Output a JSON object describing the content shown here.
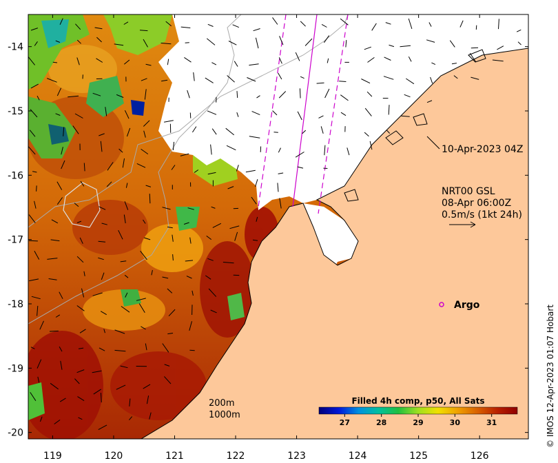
{
  "map": {
    "x_ticks": [
      "119",
      "120",
      "121",
      "122",
      "123",
      "124",
      "125",
      "126"
    ],
    "y_ticks": [
      "-14",
      "-15",
      "-16",
      "-17",
      "-18",
      "-19",
      "-20"
    ],
    "lon_range": [
      118.6,
      126.8
    ],
    "lat_range": [
      -20.1,
      -13.5
    ],
    "colors": {
      "land": "#fdc89a",
      "no_data": "#ffffff",
      "track": "#cc00cc",
      "bathymetry": "#aaaaaa"
    }
  },
  "annotations": {
    "timestamp": "10-Apr-2023 04Z",
    "current_title": "NRT00 GSL",
    "current_date": "08-Apr 06:00Z",
    "current_scale": "0.5m/s (1kt 24h)",
    "argo_label": "Argo",
    "depth_200": "200m",
    "depth_1000": "1000m"
  },
  "colorbar": {
    "title": "Filled 4h comp, p50, All Sats",
    "ticks": [
      "27",
      "28",
      "29",
      "30",
      "31"
    ],
    "range": [
      26.3,
      31.7
    ],
    "stops": [
      "#00007a",
      "#0018d8",
      "#0090e0",
      "#00c0a0",
      "#20c040",
      "#a0e020",
      "#f0e000",
      "#f0a000",
      "#d86000",
      "#b82000",
      "#900000"
    ]
  },
  "credit": "© IMOS 12-Apr-2023 01:07 Hobart"
}
